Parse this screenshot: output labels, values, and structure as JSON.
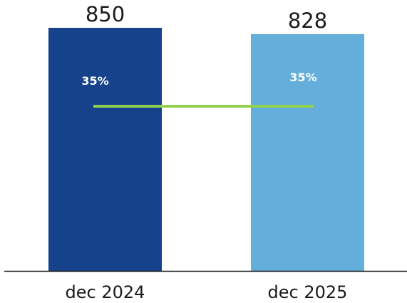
{
  "chart_data": {
    "type": "bar",
    "categories": [
      "dec 2024",
      "dec 2025"
    ],
    "values": [
      850,
      828
    ],
    "value_labels": [
      "850",
      "828"
    ],
    "percent_labels": [
      "35%",
      "35%"
    ],
    "line_series": {
      "values": [
        35,
        35
      ]
    },
    "ylim": [
      0,
      850
    ],
    "grid": false,
    "legend": "none",
    "colors": {
      "bars": [
        "#15428b",
        "#64aedb"
      ],
      "line": "#92d050",
      "axis": "#1a1a1a"
    }
  }
}
